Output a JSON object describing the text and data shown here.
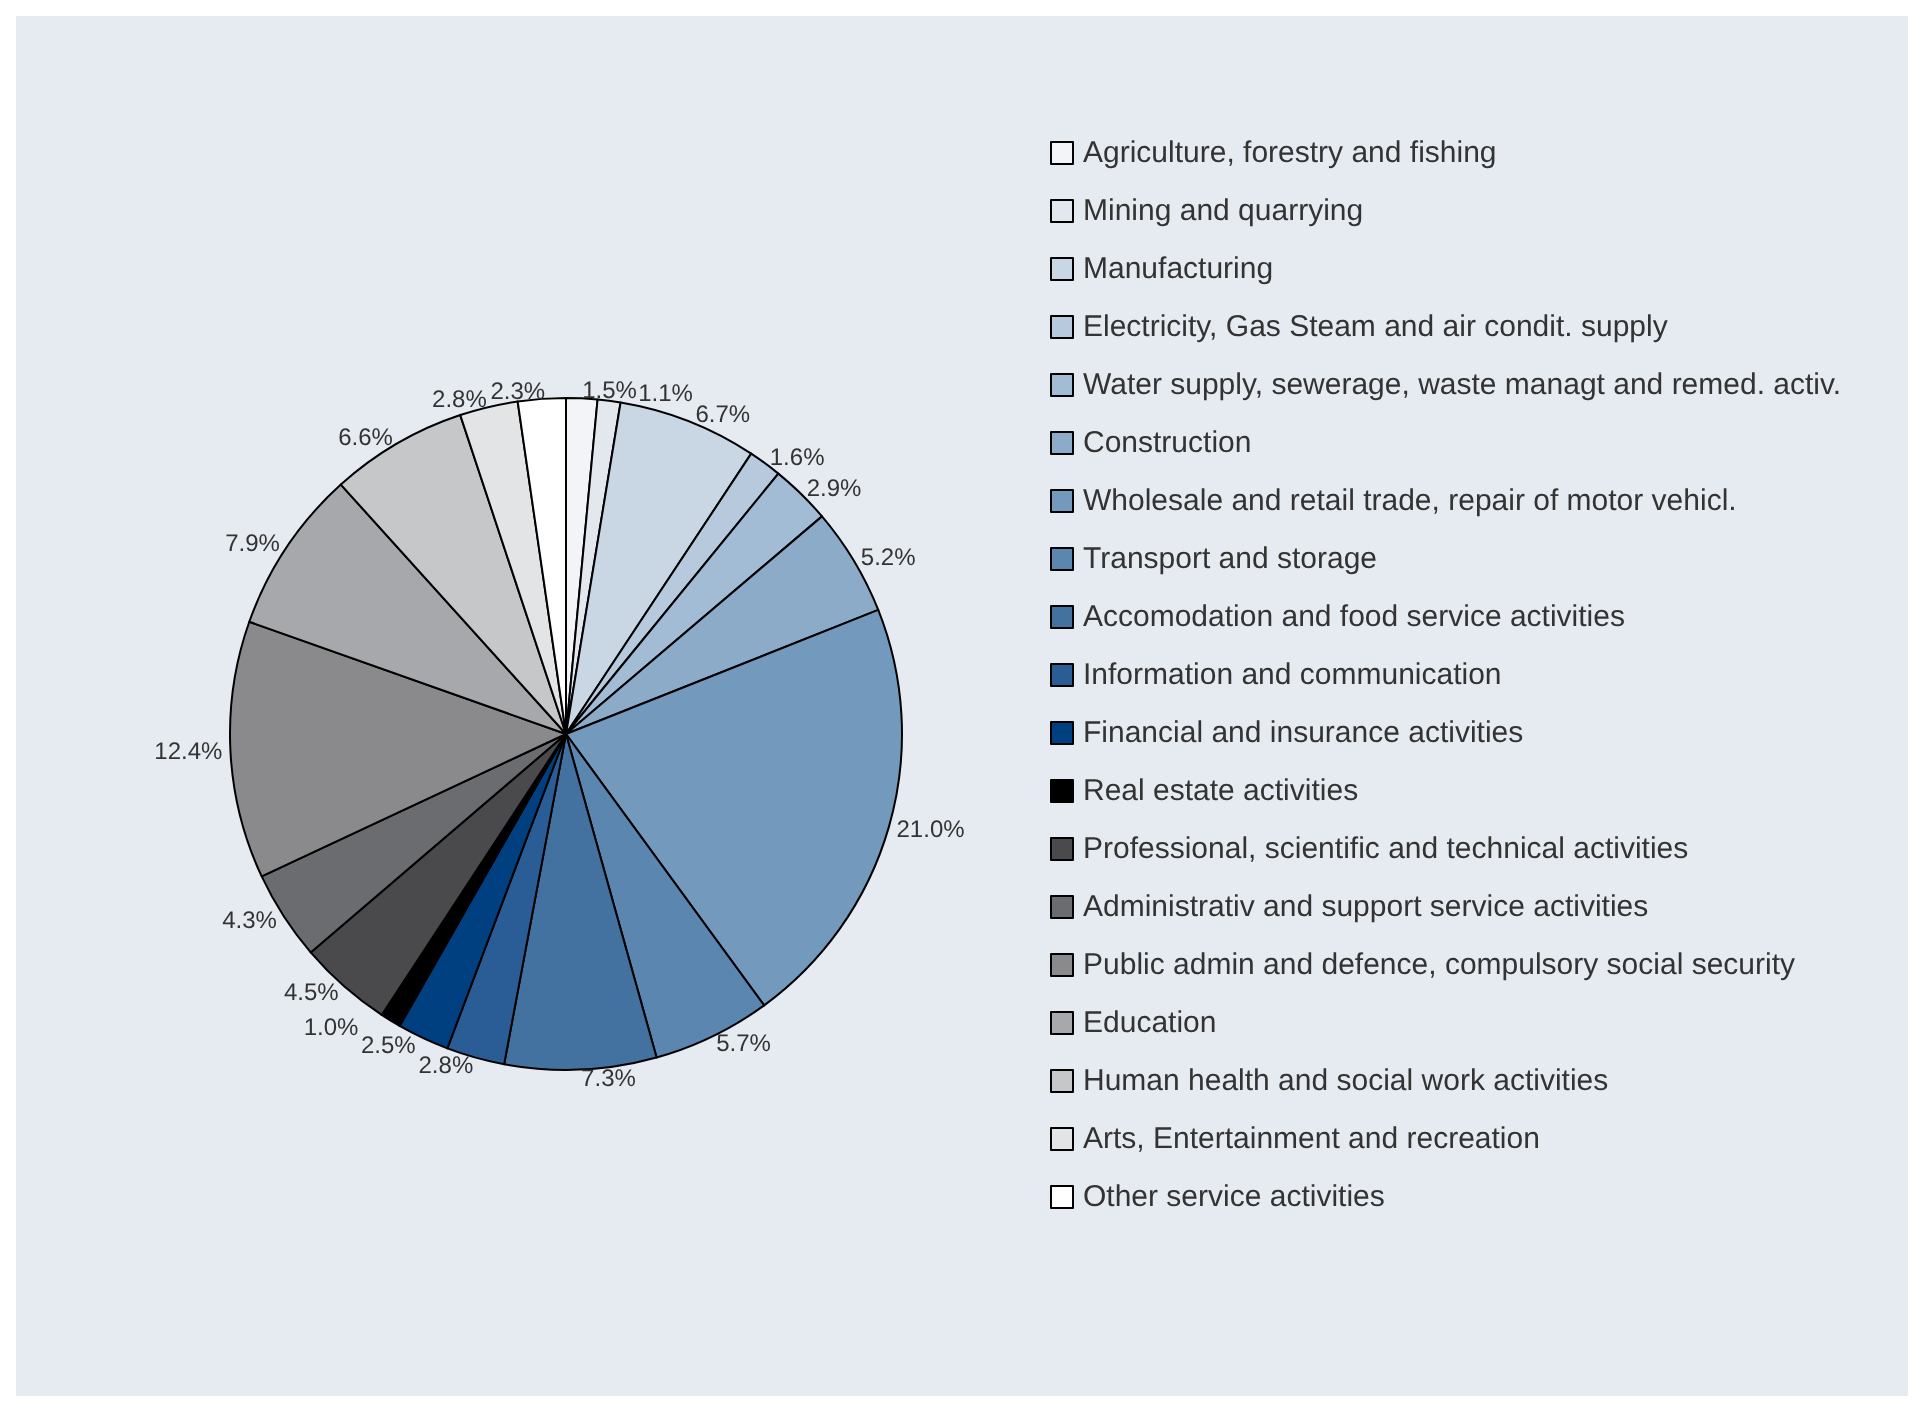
{
  "chart_data": {
    "type": "pie",
    "legend": "right",
    "categories": [
      "Agriculture, forestry and fishing",
      "Mining and quarrying",
      "Manufacturing",
      "Electricity, Gas Steam and air condit. supply",
      "Water supply, sewerage, waste managt and remed. activ.",
      "Construction",
      "Wholesale and retail trade, repair of motor vehicl.",
      "Transport and storage",
      "Accomodation and food service activities",
      "Information and communication",
      "Financial and insurance activities",
      "Real estate activities",
      "Professional, scientific and technical activities",
      "Administrativ and support service activities",
      "Public admin and defence, compulsory social security",
      "Education",
      "Human health and social work activities",
      "Arts, Entertainment and recreation",
      "Other service activities"
    ],
    "values": [
      1.5,
      1.1,
      6.7,
      1.6,
      2.9,
      5.2,
      21.0,
      5.7,
      7.3,
      2.8,
      2.5,
      1.0,
      4.5,
      4.3,
      12.4,
      7.9,
      6.6,
      2.8,
      2.3
    ],
    "value_labels": [
      "1.5%",
      "1.1%",
      "6.7%",
      "1.6%",
      "2.9%",
      "5.2%",
      "21.0%",
      "5.7%",
      "7.3%",
      "2.8%",
      "2.5%",
      "1.0%",
      "4.5%",
      "4.3%",
      "12.4%",
      "7.9%",
      "6.6%",
      "2.8%",
      "2.3%"
    ],
    "colors": [
      "#f2f4f7",
      "#e3e8ef",
      "#c9d7e5",
      "#b6c9dd",
      "#a3bcd5",
      "#8cabc9",
      "#7399bd",
      "#5a86b0",
      "#4472a0",
      "#2a5d95",
      "#004080",
      "#000000",
      "#4a4a4c",
      "#6b6c70",
      "#8a8a8c",
      "#a7a8ab",
      "#c6c7c9",
      "#e3e4e6",
      "#ffffff"
    ]
  }
}
